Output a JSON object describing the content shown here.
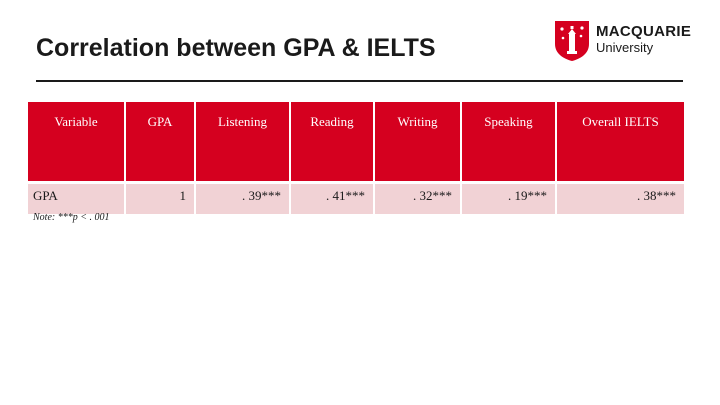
{
  "slide": {
    "title": "Correlation between GPA & IELTS"
  },
  "logo": {
    "line1": "MACQUARIE",
    "line2": "University",
    "icon": "macquarie-lighthouse-shield-icon",
    "color": "#d5001f"
  },
  "table": {
    "columns": [
      "Variable",
      "GPA",
      "Listening",
      "Reading",
      "Writing",
      "Speaking",
      "Overall IELTS"
    ],
    "rows": [
      {
        "label": "GPA",
        "values": [
          "1",
          ". 39***",
          ". 41***",
          ". 32***",
          ". 19***",
          ". 38***"
        ]
      }
    ],
    "header_color": "#d5001f",
    "row_color": "#f1d2d5"
  },
  "note": {
    "prefix": "Note:",
    "text": " ***p < . 001"
  }
}
